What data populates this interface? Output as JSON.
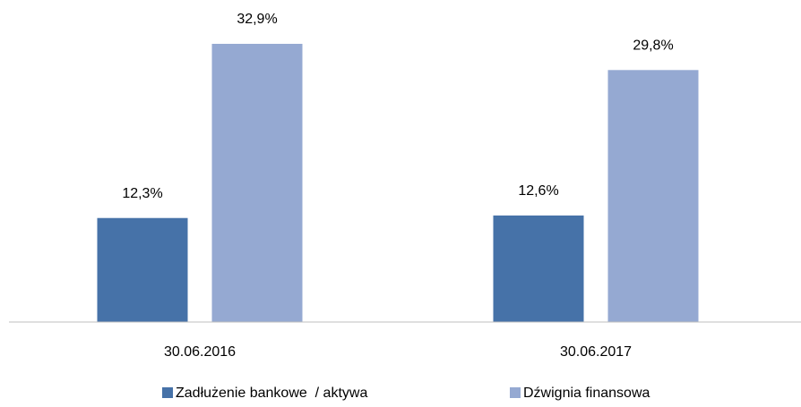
{
  "chart_data": {
    "type": "bar",
    "categories": [
      "30.06.2016",
      "30.06.2017"
    ],
    "series": [
      {
        "name": "Zadłużenie bankowe  / aktywa",
        "color": "#4672a8",
        "values": [
          12.3,
          12.6
        ],
        "value_labels": [
          "12,3%",
          "12,6%"
        ]
      },
      {
        "name": "Dźwignia finansowa",
        "color": "#95a9d2",
        "values": [
          32.9,
          29.8
        ],
        "value_labels": [
          "32,9%",
          "29,8%"
        ]
      }
    ],
    "legend": "bottom"
  }
}
